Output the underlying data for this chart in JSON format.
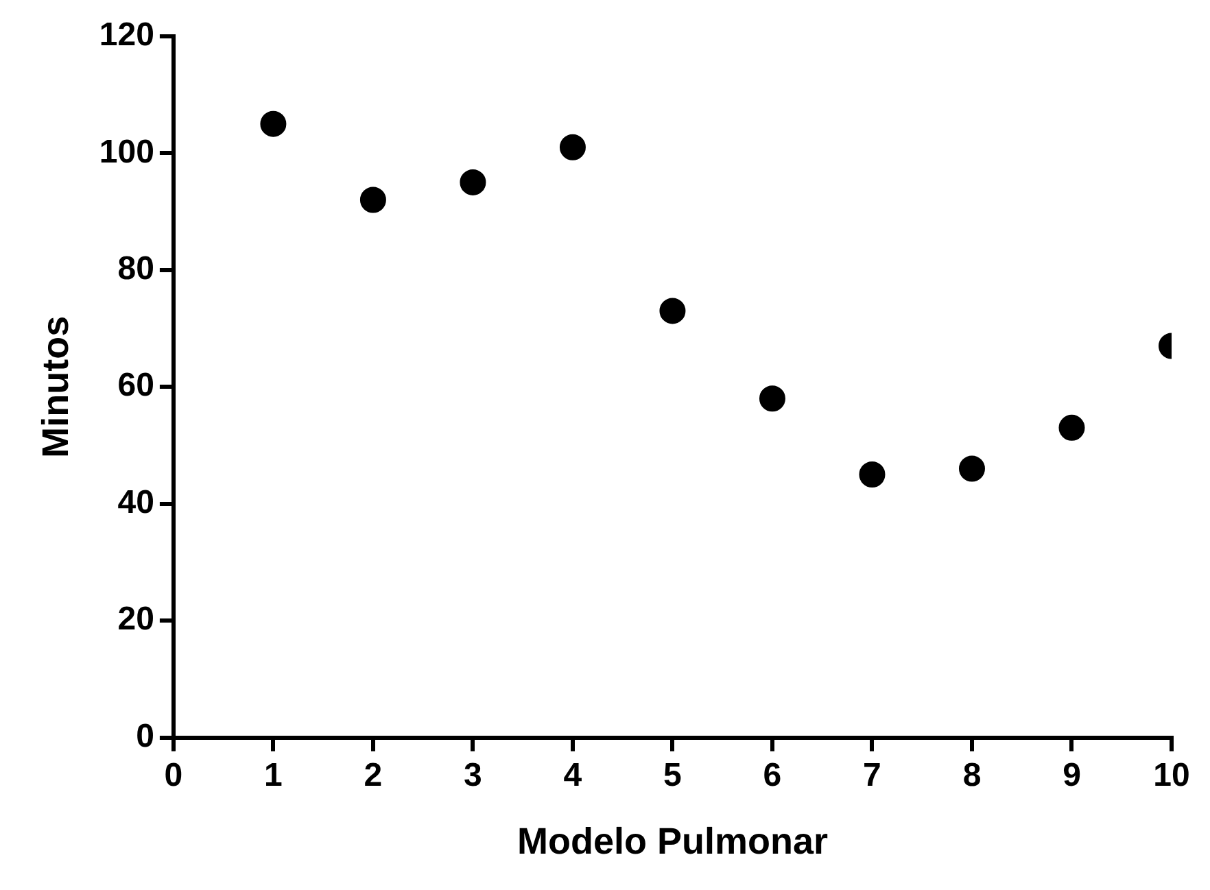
{
  "chart_data": {
    "type": "scatter",
    "xlabel": "Modelo Pulmonar",
    "ylabel": "Minutos",
    "x": [
      1,
      2,
      3,
      4,
      5,
      6,
      7,
      8,
      9,
      10
    ],
    "series": [
      {
        "color": "#000000",
        "values": [
          105,
          92,
          95,
          101,
          73,
          58,
          45,
          46,
          53,
          67
        ]
      }
    ],
    "xlim": [
      0,
      10
    ],
    "xticks": [
      0,
      1,
      2,
      3,
      4,
      5,
      6,
      7,
      8,
      9,
      10
    ],
    "ylim": [
      0,
      120
    ],
    "yticks": [
      0,
      20,
      40,
      60,
      80,
      100,
      120
    ],
    "grid": false,
    "legend": false,
    "marker": "circle"
  }
}
